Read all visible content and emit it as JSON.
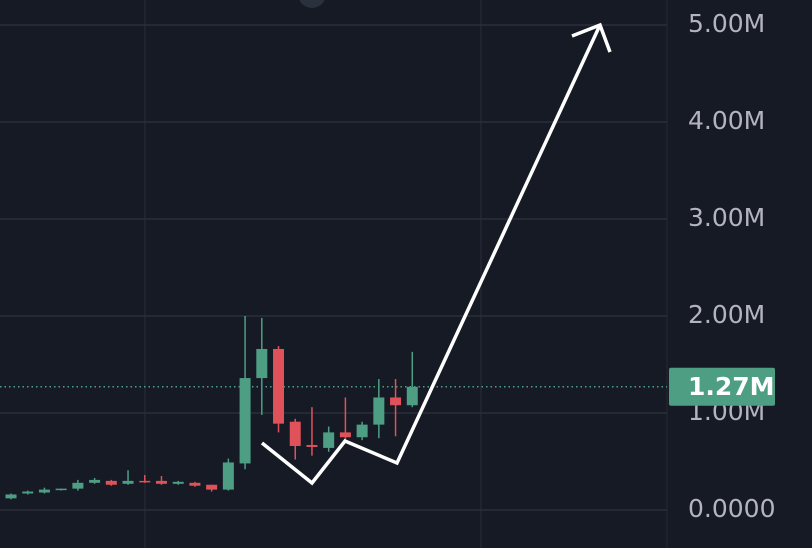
{
  "chart_data": {
    "type": "candlestick",
    "open": [
      120000,
      170000,
      180000,
      210000,
      220000,
      280000,
      300000,
      270000,
      300000,
      300000,
      270000,
      280000,
      260000,
      210000,
      480000,
      1360000,
      1660000,
      910000,
      670000,
      640000,
      800000,
      750000,
      880000,
      1160000,
      1080000
    ],
    "high": [
      170000,
      200000,
      230000,
      220000,
      310000,
      330000,
      310000,
      410000,
      360000,
      350000,
      300000,
      290000,
      260000,
      530000,
      2000000,
      1980000,
      1690000,
      940000,
      1060000,
      860000,
      1160000,
      910000,
      1350000,
      1350000,
      1630000
    ],
    "low": [
      110000,
      160000,
      170000,
      200000,
      200000,
      270000,
      250000,
      260000,
      280000,
      260000,
      260000,
      240000,
      190000,
      200000,
      420000,
      980000,
      800000,
      520000,
      560000,
      600000,
      720000,
      720000,
      740000,
      760000,
      1060000
    ],
    "close": [
      160000,
      190000,
      210000,
      220000,
      280000,
      310000,
      260000,
      300000,
      290000,
      270000,
      290000,
      250000,
      210000,
      490000,
      1360000,
      1660000,
      890000,
      660000,
      650000,
      800000,
      750000,
      880000,
      1160000,
      1080000,
      1270000
    ],
    "up_color": "#4e9e83",
    "down_color": "#e0525a",
    "ylim": [
      -392000,
      5258000
    ],
    "yticks": [
      {
        "value": 0,
        "label": "0.0000"
      },
      {
        "value": 1000000,
        "label": "1.00M"
      },
      {
        "value": 2000000,
        "label": "2.00M"
      },
      {
        "value": 3000000,
        "label": "3.00M"
      },
      {
        "value": 4000000,
        "label": "4.00M"
      },
      {
        "value": 5000000,
        "label": "5.00M"
      }
    ],
    "grid": true,
    "price_line": {
      "value": 1270000,
      "label": "1.27M"
    }
  }
}
